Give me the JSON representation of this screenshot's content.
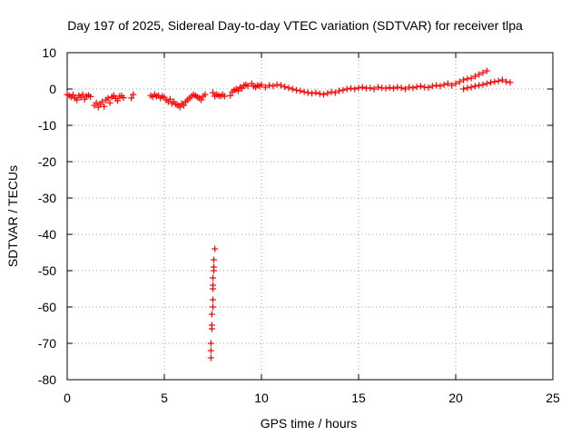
{
  "chart_data": {
    "type": "scatter",
    "title": "Day 197 of 2025, Sidereal Day-to-day VTEC variation (SDTVAR) for receiver tlpa",
    "xlabel": "GPS time / hours",
    "ylabel": "SDTVAR / TECUs",
    "xlim": [
      0,
      25
    ],
    "ylim": [
      -80,
      10
    ],
    "xticks": [
      0,
      5,
      10,
      15,
      20,
      25
    ],
    "yticks": [
      10,
      0,
      -10,
      -20,
      -30,
      -40,
      -50,
      -60,
      -70,
      -80
    ],
    "grid": true,
    "marker": "plus",
    "color": "#ff0000",
    "series": [
      {
        "name": "SDTVAR",
        "x": [
          0.0,
          0.1,
          0.2,
          0.3,
          0.4,
          0.5,
          0.6,
          0.7,
          0.8,
          0.9,
          1.0,
          1.1,
          1.2,
          1.4,
          1.5,
          1.6,
          1.7,
          1.8,
          1.9,
          2.0,
          2.1,
          2.2,
          2.3,
          2.4,
          2.5,
          2.6,
          2.7,
          2.8,
          2.9,
          3.3,
          3.4,
          4.3,
          4.4,
          4.5,
          4.6,
          4.7,
          4.8,
          4.9,
          5.0,
          5.1,
          5.2,
          5.3,
          5.4,
          5.5,
          5.6,
          5.7,
          5.8,
          5.9,
          6.0,
          6.1,
          6.2,
          6.3,
          6.4,
          6.5,
          6.6,
          6.7,
          6.8,
          6.9,
          7.0,
          7.1,
          7.5,
          7.6,
          7.7,
          7.8,
          7.9,
          8.0,
          8.1,
          8.4,
          8.5,
          8.6,
          8.7,
          8.8,
          8.9,
          9.0,
          9.1,
          9.2,
          9.3,
          9.5,
          9.6,
          9.7,
          9.8,
          9.9,
          10.0,
          10.2,
          10.4,
          10.6,
          10.8,
          11.0,
          11.2,
          11.4,
          11.6,
          11.8,
          12.0,
          12.2,
          12.4,
          12.6,
          12.8,
          13.0,
          13.2,
          13.4,
          13.6,
          13.8,
          14.0,
          14.2,
          14.4,
          14.6,
          14.8,
          15.0,
          15.2,
          15.4,
          15.6,
          15.8,
          16.0,
          16.2,
          16.4,
          16.6,
          16.8,
          17.0,
          17.2,
          17.4,
          17.6,
          17.8,
          18.0,
          18.2,
          18.4,
          18.6,
          18.8,
          19.0,
          19.2,
          19.4,
          19.6,
          19.8,
          20.0,
          20.2,
          20.4,
          20.6,
          20.8,
          21.0,
          21.2,
          21.4,
          21.6,
          20.4,
          20.6,
          20.8,
          21.0,
          21.2,
          21.4,
          21.6,
          21.8,
          22.0,
          22.2,
          22.4,
          22.6,
          22.8,
          7.4,
          7.4,
          7.45,
          7.45,
          7.5,
          7.5,
          7.5,
          7.55,
          7.55,
          7.6,
          7.5,
          7.45,
          7.4,
          7.5,
          7.55
        ],
        "y": [
          -1.5,
          -1.8,
          -2.2,
          -1.6,
          -2.5,
          -3.0,
          -1.8,
          -2.3,
          -1.5,
          -2.8,
          -2.0,
          -1.7,
          -2.1,
          -4.5,
          -3.8,
          -5.0,
          -4.2,
          -3.5,
          -4.8,
          -3.0,
          -2.5,
          -3.8,
          -2.2,
          -1.8,
          -2.6,
          -3.2,
          -2.0,
          -1.9,
          -2.4,
          -2.5,
          -1.5,
          -1.8,
          -2.2,
          -1.5,
          -2.0,
          -1.8,
          -2.5,
          -2.0,
          -2.3,
          -3.0,
          -3.5,
          -2.8,
          -4.0,
          -3.5,
          -4.2,
          -4.5,
          -5.0,
          -4.0,
          -4.5,
          -3.5,
          -3.0,
          -2.5,
          -2.0,
          -1.5,
          -1.8,
          -2.2,
          -2.5,
          -3.0,
          -2.0,
          -1.5,
          -1.0,
          -2.0,
          -1.5,
          -1.8,
          -2.0,
          -1.5,
          -2.0,
          -1.8,
          -0.8,
          -0.3,
          0.0,
          -0.5,
          0.5,
          0.2,
          1.0,
          1.2,
          0.8,
          1.5,
          0.8,
          0.5,
          1.0,
          0.8,
          1.2,
          0.5,
          1.0,
          0.8,
          1.2,
          1.0,
          0.6,
          0.3,
          0.0,
          -0.3,
          -0.5,
          -0.8,
          -1.0,
          -1.2,
          -1.0,
          -1.3,
          -1.5,
          -1.2,
          -0.8,
          -1.0,
          -0.5,
          -0.3,
          0.0,
          0.2,
          0.0,
          0.3,
          0.5,
          0.2,
          0.3,
          0.0,
          0.5,
          0.3,
          0.2,
          0.4,
          0.2,
          0.5,
          0.3,
          0.0,
          0.5,
          0.3,
          0.6,
          0.8,
          0.5,
          0.4,
          0.8,
          1.0,
          0.8,
          1.2,
          1.5,
          1.0,
          1.5,
          2.0,
          2.5,
          2.8,
          3.0,
          3.5,
          4.0,
          4.5,
          5.0,
          0.0,
          0.3,
          0.5,
          0.8,
          1.0,
          1.2,
          1.5,
          1.8,
          2.0,
          2.2,
          2.5,
          2.0,
          1.8,
          -74.0,
          -70.0,
          -65.0,
          -62.0,
          -58.0,
          -55.0,
          -52.0,
          -49.0,
          -47.0,
          -44.0,
          -60.0,
          -66.0,
          -72.0,
          -54.0,
          -50.0
        ]
      }
    ]
  }
}
